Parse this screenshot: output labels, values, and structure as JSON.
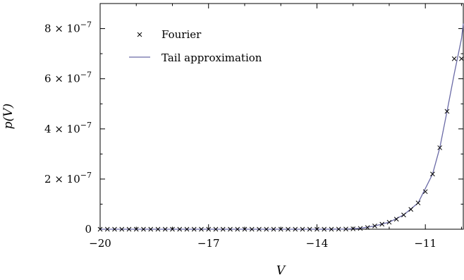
{
  "chart_data": {
    "type": "line",
    "title": "",
    "xlabel": "V",
    "ylabel": "p(V)",
    "xlim": [
      -20,
      -9.95
    ],
    "ylim": [
      0,
      9e-07
    ],
    "grid": false,
    "legend_placement": "top-left",
    "x_ticks": [
      -20,
      -17,
      -14,
      -11
    ],
    "x_tick_labels": [
      "−20",
      "−17",
      "−14",
      "−11"
    ],
    "y_ticks": [
      0,
      2e-07,
      4e-07,
      6e-07,
      8e-07
    ],
    "y_tick_labels": [
      {
        "coef": "0",
        "exp": ""
      },
      {
        "coef": "2 × 10",
        "exp": "−7"
      },
      {
        "coef": "4 × 10",
        "exp": "−7"
      },
      {
        "coef": "6 × 10",
        "exp": "−7"
      },
      {
        "coef": "8 × 10",
        "exp": "−7"
      }
    ],
    "series": [
      {
        "name": "Fourier",
        "style": "markers",
        "marker": "x",
        "color": "#000000",
        "x": [
          -20.0,
          -19.8,
          -19.6,
          -19.4,
          -19.2,
          -19.0,
          -18.8,
          -18.6,
          -18.4,
          -18.2,
          -18.0,
          -17.8,
          -17.6,
          -17.4,
          -17.2,
          -17.0,
          -16.8,
          -16.6,
          -16.4,
          -16.2,
          -16.0,
          -15.8,
          -15.6,
          -15.4,
          -15.2,
          -15.0,
          -14.8,
          -14.6,
          -14.4,
          -14.2,
          -14.0,
          -13.8,
          -13.6,
          -13.4,
          -13.2,
          -13.0,
          -12.8,
          -12.6,
          -12.4,
          -12.2,
          -12.0,
          -11.8,
          -11.6,
          -11.4,
          -11.2,
          -11.0,
          -10.8,
          -10.6,
          -10.4,
          -10.2,
          -10.0
        ],
        "y": [
          0,
          0,
          0,
          0,
          0,
          0,
          0,
          0,
          0,
          0,
          0,
          0,
          0,
          0,
          0,
          0,
          0,
          0,
          0,
          0,
          0,
          0,
          0,
          0,
          0,
          0,
          0,
          0,
          0,
          0,
          0,
          0,
          1e-10,
          3e-10,
          7e-10,
          1.6e-09,
          3.4e-09,
          6.9e-09,
          1.31e-08,
          2e-08,
          2.8e-08,
          4e-08,
          5.7e-08,
          7.9e-08,
          1.05e-07,
          1.5e-07,
          2.2e-07,
          3.25e-07,
          4.7e-07,
          6.8e-07,
          6.8e-07
        ]
      },
      {
        "name": "Tail approximation",
        "style": "line",
        "color": "#6a6aa6",
        "x": [
          -20.0,
          -14.0,
          -13.6,
          -13.2,
          -12.8,
          -12.4,
          -12.0,
          -11.6,
          -11.2,
          -10.8,
          -10.6,
          -10.4,
          -10.2,
          -10.0,
          -9.95
        ],
        "y": [
          0,
          0,
          2e-10,
          8e-10,
          3.4e-09,
          1.3e-08,
          2.8e-08,
          5.7e-08,
          1.05e-07,
          2.2e-07,
          3.25e-07,
          4.7e-07,
          6.2e-07,
          7.6e-07,
          8.2e-07
        ]
      }
    ]
  }
}
